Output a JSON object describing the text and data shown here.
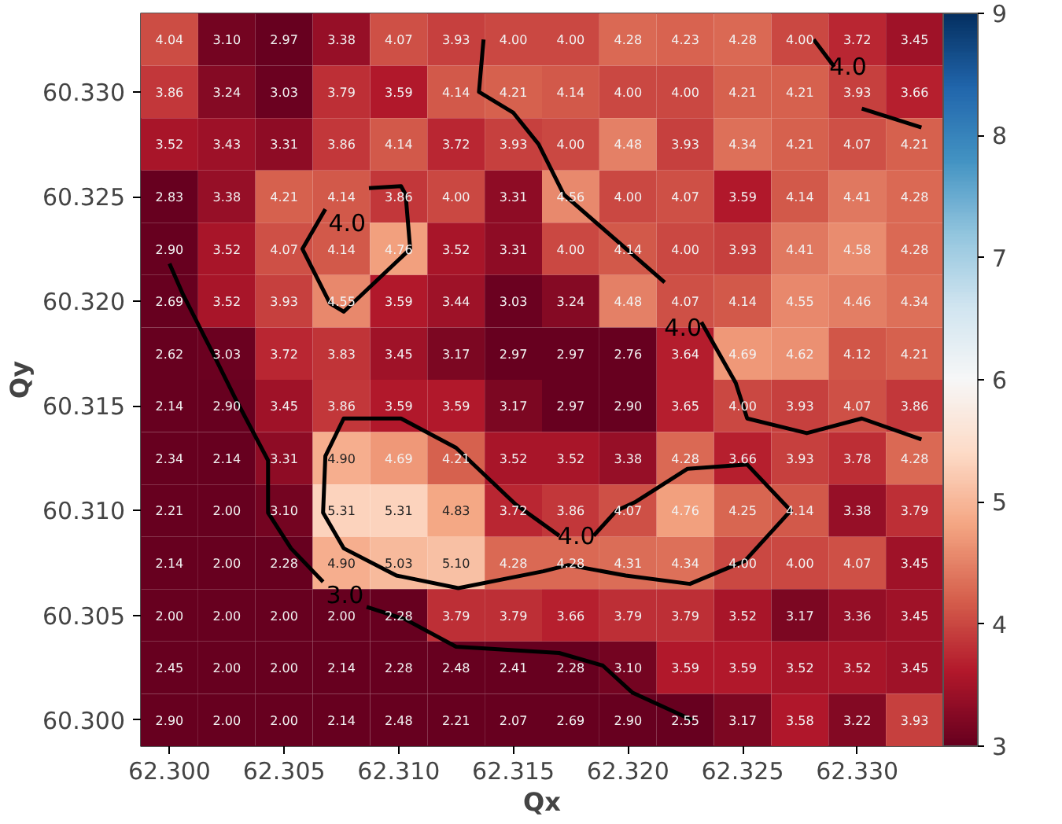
{
  "chart_data": {
    "type": "heatmap",
    "xlabel": "Qx",
    "ylabel": "Qy",
    "x": [
      62.3,
      62.3025,
      62.305,
      62.3075,
      62.31,
      62.3125,
      62.315,
      62.3175,
      62.32,
      62.3225,
      62.325,
      62.3275,
      62.33,
      62.3325
    ],
    "y": [
      60.3325,
      60.33,
      60.3275,
      60.325,
      60.3225,
      60.32,
      60.3175,
      60.315,
      60.3125,
      60.31,
      60.3075,
      60.305,
      60.3025,
      60.3
    ],
    "xlim": [
      62.29875,
      62.33375
    ],
    "ylim": [
      60.29875,
      60.33375
    ],
    "xticks": [
      {
        "value": 62.3,
        "label": "62.300"
      },
      {
        "value": 62.305,
        "label": "62.305"
      },
      {
        "value": 62.31,
        "label": "62.310"
      },
      {
        "value": 62.315,
        "label": "62.315"
      },
      {
        "value": 62.32,
        "label": "62.320"
      },
      {
        "value": 62.325,
        "label": "62.325"
      },
      {
        "value": 62.33,
        "label": "62.330"
      }
    ],
    "yticks": [
      {
        "value": 60.3,
        "label": "60.300"
      },
      {
        "value": 60.305,
        "label": "60.305"
      },
      {
        "value": 60.31,
        "label": "60.310"
      },
      {
        "value": 60.315,
        "label": "60.315"
      },
      {
        "value": 60.32,
        "label": "60.320"
      },
      {
        "value": 60.325,
        "label": "60.325"
      },
      {
        "value": 60.33,
        "label": "60.330"
      }
    ],
    "clim": [
      3,
      9
    ],
    "cticks": [
      3,
      4,
      5,
      6,
      7,
      8,
      9
    ],
    "cells": [
      [
        4.04,
        3.1,
        2.97,
        3.38,
        4.07,
        3.93,
        4.0,
        4.0,
        4.28,
        4.23,
        4.28,
        4.0,
        3.72,
        3.45
      ],
      [
        3.86,
        3.24,
        3.03,
        3.79,
        3.59,
        4.14,
        4.21,
        4.14,
        4.0,
        4.0,
        4.21,
        4.21,
        3.93,
        3.66
      ],
      [
        3.52,
        3.43,
        3.31,
        3.86,
        4.14,
        3.72,
        3.93,
        4.0,
        4.48,
        3.93,
        4.34,
        4.21,
        4.07,
        4.21
      ],
      [
        2.83,
        3.38,
        4.21,
        4.14,
        3.86,
        4.0,
        3.31,
        4.56,
        4.0,
        4.07,
        3.59,
        4.14,
        4.41,
        4.28
      ],
      [
        2.9,
        3.52,
        4.07,
        4.14,
        4.76,
        3.52,
        3.31,
        4.0,
        4.14,
        4.0,
        3.93,
        4.41,
        4.58,
        4.28
      ],
      [
        2.69,
        3.52,
        3.93,
        4.55,
        3.59,
        3.44,
        3.03,
        3.24,
        4.48,
        4.07,
        4.14,
        4.55,
        4.46,
        4.34
      ],
      [
        2.62,
        3.03,
        3.72,
        3.83,
        3.45,
        3.17,
        2.97,
        2.97,
        2.76,
        3.64,
        4.69,
        4.62,
        4.12,
        4.21
      ],
      [
        2.14,
        2.9,
        3.45,
        3.86,
        3.59,
        3.59,
        3.17,
        2.97,
        2.9,
        3.65,
        4.0,
        3.93,
        4.07,
        3.86
      ],
      [
        2.34,
        2.14,
        3.31,
        4.9,
        4.69,
        4.21,
        3.52,
        3.52,
        3.38,
        4.28,
        3.66,
        3.93,
        3.78,
        4.28
      ],
      [
        2.21,
        2.0,
        3.1,
        5.31,
        5.31,
        4.83,
        3.72,
        3.86,
        4.07,
        4.76,
        4.25,
        4.14,
        3.38,
        3.79
      ],
      [
        2.14,
        2.0,
        2.28,
        4.9,
        5.03,
        5.1,
        4.28,
        4.28,
        4.31,
        4.34,
        4.0,
        4.0,
        4.07,
        3.45
      ],
      [
        2.0,
        2.0,
        2.0,
        2.0,
        2.28,
        3.79,
        3.79,
        3.66,
        3.79,
        3.79,
        3.52,
        3.17,
        3.36,
        3.45
      ],
      [
        2.45,
        2.0,
        2.0,
        2.14,
        2.28,
        2.48,
        2.41,
        2.28,
        3.1,
        3.59,
        3.59,
        3.52,
        3.52,
        3.45
      ],
      [
        2.9,
        2.0,
        2.0,
        2.14,
        2.48,
        2.21,
        2.07,
        2.69,
        2.9,
        2.55,
        3.17,
        3.58,
        3.22,
        3.93
      ]
    ],
    "cell_labels": [
      [
        "4.04",
        "3.10",
        "2.97",
        "3.38",
        "4.07",
        "3.93",
        "4.00",
        "4.00",
        "4.28",
        "4.23",
        "4.28",
        "4.00",
        "3.72",
        "3.45"
      ],
      [
        "3.86",
        "3.24",
        "3.03",
        "3.79",
        "3.59",
        "4.14",
        "4.21",
        "4.14",
        "4.00",
        "4.00",
        "4.21",
        "4.21",
        "3.93",
        "3.66"
      ],
      [
        "3.52",
        "3.43",
        "3.31",
        "3.86",
        "4.14",
        "3.72",
        "3.93",
        "4.00",
        "4.48",
        "3.93",
        "4.34",
        "4.21",
        "4.07",
        "4.21"
      ],
      [
        "2.83",
        "3.38",
        "4.21",
        "4.14",
        "3.86",
        "4.00",
        "3.31",
        "4.56",
        "4.00",
        "4.07",
        "3.59",
        "4.14",
        "4.41",
        "4.28"
      ],
      [
        "2.90",
        "3.52",
        "4.07",
        "4.14",
        "4.76",
        "3.52",
        "3.31",
        "4.00",
        "4.14",
        "4.00",
        "3.93",
        "4.41",
        "4.58",
        "4.28"
      ],
      [
        "2.69",
        "3.52",
        "3.93",
        "4.55",
        "3.59",
        "3.44",
        "3.03",
        "3.24",
        "4.48",
        "4.07",
        "4.14",
        "4.55",
        "4.46",
        "4.34"
      ],
      [
        "2.62",
        "3.03",
        "3.72",
        "3.83",
        "3.45",
        "3.17",
        "2.97",
        "2.97",
        "2.76",
        "3.64",
        "4.69",
        "4.62",
        "4.12",
        "4.21"
      ],
      [
        "2.14",
        "2.90",
        "3.45",
        "3.86",
        "3.59",
        "3.59",
        "3.17",
        "2.97",
        "2.90",
        "3.65",
        "4.00",
        "3.93",
        "4.07",
        "3.86"
      ],
      [
        "2.34",
        "2.14",
        "3.31",
        "4.90",
        "4.69",
        "4.21",
        "3.52",
        "3.52",
        "3.38",
        "4.28",
        "3.66",
        "3.93",
        "3.78",
        "4.28"
      ],
      [
        "2.21",
        "2.00",
        "3.10",
        "5.31",
        "5.31",
        "4.83",
        "3.72",
        "3.86",
        "4.07",
        "4.76",
        "4.25",
        "4.14",
        "3.38",
        "3.79"
      ],
      [
        "2.14",
        "2.00",
        "2.28",
        "4.90",
        "5.03",
        "5.10",
        "4.28",
        "4.28",
        "4.31",
        "4.34",
        "4.00",
        "4.00",
        "4.07",
        "3.45"
      ],
      [
        "2.00",
        "2.00",
        "2.00",
        "2.00",
        "2.28",
        "3.79",
        "3.79",
        "3.66",
        "3.79",
        "3.79",
        "3.52",
        "3.17",
        "3.36",
        "3.45"
      ],
      [
        "2.45",
        "2.00",
        "2.00",
        "2.14",
        "2.28",
        "2.48",
        "2.41",
        "2.28",
        "3.10",
        "3.59",
        "3.59",
        "3.52",
        "3.52",
        "3.45"
      ],
      [
        "2.90",
        "2.00",
        "2.00",
        "2.14",
        "2.48",
        "2.21",
        "2.07",
        "2.69",
        "2.90",
        "2.55",
        "3.17",
        "3.58",
        "3.22",
        "3.93"
      ]
    ],
    "series": [
      {
        "type": "line",
        "color": "#000000",
        "x": [
          62.3281,
          62.329,
          null,
          62.3302,
          62.3328
        ],
        "values": [
          60.3325,
          60.3312,
          null,
          60.3292,
          60.3283
        ]
      },
      {
        "type": "line",
        "color": "#000000",
        "x": [
          62.3137,
          62.3135,
          62.315,
          62.3161,
          62.3172,
          62.3216,
          null,
          62.3232,
          62.3247,
          62.3252,
          62.3278,
          62.3302,
          62.3328
        ],
        "values": [
          60.3325,
          60.33,
          60.329,
          60.3275,
          60.3251,
          60.3209,
          null,
          60.319,
          60.3161,
          60.3144,
          60.3137,
          60.3144,
          60.3134
        ]
      },
      {
        "type": "line",
        "color": "#000000",
        "x": [
          62.3087,
          62.3101,
          62.3103,
          62.3105,
          62.3076,
          62.307,
          62.3058,
          62.3068
        ],
        "values": [
          60.3254,
          60.3255,
          60.3251,
          60.3225,
          60.3195,
          60.3199,
          60.3225,
          60.3244
        ]
      },
      {
        "type": "line",
        "color": "#000000",
        "x": [
          62.3,
          62.3006,
          62.3019,
          62.3029,
          62.3043,
          62.3043,
          62.3053,
          62.3067,
          null,
          62.3086,
          62.3103,
          62.3125,
          62.317,
          62.3189,
          62.3202,
          62.3228
        ],
        "values": [
          60.3218,
          60.3203,
          60.3175,
          60.3153,
          60.3124,
          60.3099,
          60.3082,
          60.3066,
          null,
          60.3054,
          60.3048,
          60.3035,
          60.3032,
          60.3026,
          60.3013,
          60.3
        ]
      },
      {
        "type": "line",
        "color": "#000000",
        "x": [
          62.3185,
          62.3195,
          62.3203,
          62.3226,
          62.3252,
          62.3271,
          62.3251,
          62.3227,
          62.3199,
          62.3174,
          62.3163,
          62.3126,
          62.3099,
          62.3076,
          62.3067,
          62.3068,
          62.3076,
          62.3101,
          62.3125,
          62.3151,
          62.317
        ],
        "values": [
          60.3088,
          60.31,
          60.3104,
          60.312,
          60.3122,
          60.31,
          60.3076,
          60.3065,
          60.3069,
          60.3074,
          60.3071,
          60.3063,
          60.3069,
          60.3082,
          60.3099,
          60.3126,
          60.3144,
          60.3144,
          60.313,
          60.3103,
          60.3088
        ]
      }
    ],
    "annotations": [
      "4.0",
      "4.0",
      "4.0",
      "3.0",
      "4.0"
    ]
  }
}
